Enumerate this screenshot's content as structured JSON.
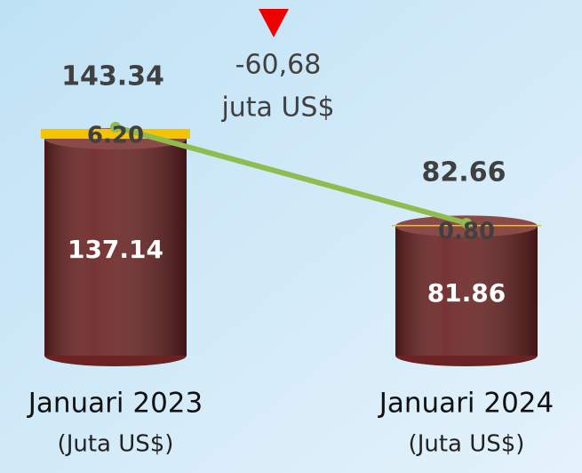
{
  "chart_data": {
    "type": "bar",
    "stacked": true,
    "categories": [
      "Januari  2023",
      "Januari  2024"
    ],
    "sublabels": [
      "(Juta US$)",
      "(Juta US$)"
    ],
    "series": [
      {
        "color": "#6a2322",
        "values": [
          137.14,
          81.86
        ]
      },
      {
        "color": "#f5c400",
        "values": [
          6.2,
          0.8
        ],
        "value_labels": [
          "6.20",
          "0.80"
        ]
      }
    ],
    "totals": [
      143.34,
      82.66
    ],
    "line_color": "#8fbc4f",
    "annotation": {
      "value": -60.68,
      "label": "-60,68",
      "unit": "juta US$",
      "color": "#ee0000"
    }
  }
}
